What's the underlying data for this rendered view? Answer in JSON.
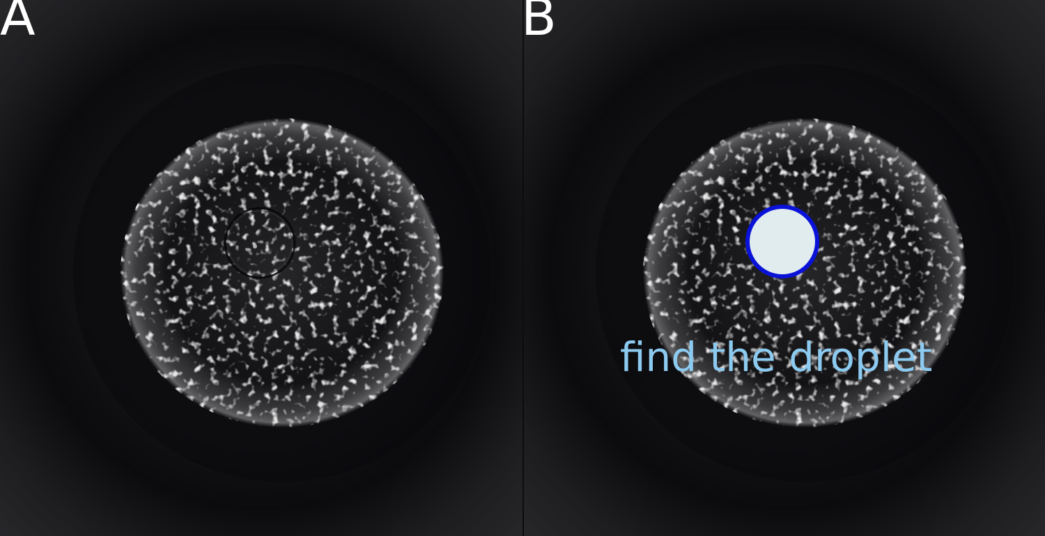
{
  "panels": [
    {
      "label": "A"
    },
    {
      "label": "B",
      "annotation": "find the droplet"
    }
  ],
  "colors": {
    "annotation_text": "#8ccaf0",
    "droplet_outline": "#0a12d8",
    "droplet_fill": "#e1ecee",
    "label_text": "#ffffff",
    "background": "#1a1a1c"
  }
}
